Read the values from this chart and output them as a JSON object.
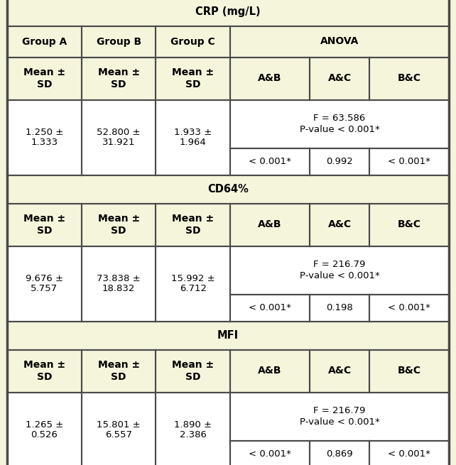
{
  "bg_color": "#f5f5dc",
  "border_color": "#4a4a4a",
  "white": "#ffffff",
  "sections": [
    {
      "title": "CRP (mg/L)",
      "has_group_header": true,
      "group_a": "1.250 ±\n1.333",
      "group_b": "52.800 ±\n31.921",
      "group_c": "1.933 ±\n1.964",
      "f_stat": "F = 63.586\nP-value < 0.001*",
      "ab": "< 0.001*",
      "ac": "0.992",
      "bc": "< 0.001*"
    },
    {
      "title": "CD64%",
      "has_group_header": false,
      "group_a": "9.676 ±\n5.757",
      "group_b": "73.838 ±\n18.832",
      "group_c": "15.992 ±\n6.712",
      "f_stat": "F = 216.79\nP-value < 0.001*",
      "ab": "< 0.001*",
      "ac": "0.198",
      "bc": "< 0.001*"
    },
    {
      "title": "MFI",
      "has_group_header": false,
      "group_a": "1.265 ±\n0.526",
      "group_b": "15.801 ±\n6.557",
      "group_c": "1.890 ±\n2.386",
      "f_stat": "F = 216.79\nP-value < 0.001*",
      "ab": "< 0.001*",
      "ac": "0.869",
      "bc": "< 0.001*"
    }
  ],
  "figsize": [
    6.42,
    6.55
  ],
  "dpi": 100,
  "font_family": "DejaVu Sans",
  "fs_title": 10.5,
  "fs_header": 10.0,
  "fs_data": 9.5
}
